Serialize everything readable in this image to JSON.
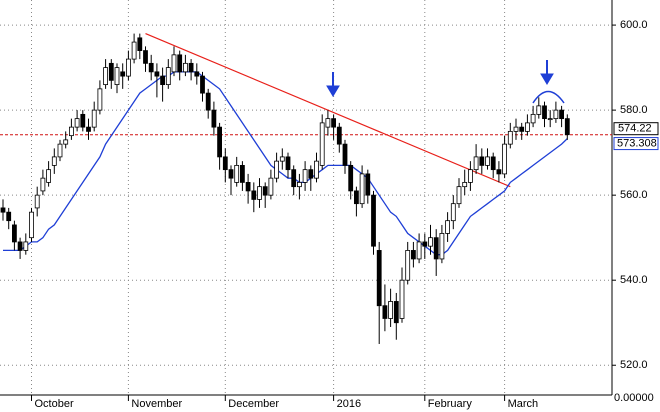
{
  "chart_data": {
    "type": "candlestick",
    "categories": [
      null,
      null,
      null,
      null,
      null,
      "October",
      null,
      null,
      null,
      null,
      null,
      null,
      null,
      null,
      null,
      null,
      null,
      null,
      null,
      null,
      null,
      null,
      "November",
      null,
      null,
      null,
      null,
      null,
      null,
      null,
      null,
      null,
      null,
      null,
      null,
      null,
      null,
      null,
      null,
      "December",
      null,
      null,
      null,
      null,
      null,
      null,
      null,
      null,
      null,
      null,
      null,
      null,
      null,
      null,
      null,
      null,
      null,
      null,
      "2016",
      null,
      null,
      null,
      null,
      null,
      null,
      null,
      null,
      null,
      null,
      null,
      null,
      null,
      null,
      null,
      "February",
      null,
      null,
      null,
      null,
      null,
      null,
      null,
      null,
      null,
      null,
      null,
      null,
      null,
      "March",
      null,
      null,
      null,
      null,
      null,
      null,
      null,
      null,
      null,
      null,
      null
    ],
    "ohlc": [
      [
        557,
        559,
        554,
        556
      ],
      [
        556,
        557,
        552,
        554
      ],
      [
        553,
        554,
        547,
        549
      ],
      [
        549,
        550,
        545,
        547
      ],
      [
        547,
        551,
        546,
        549
      ],
      [
        550,
        557,
        549,
        556
      ],
      [
        557,
        562,
        555,
        560
      ],
      [
        561,
        566,
        560,
        564
      ],
      [
        563,
        568,
        562,
        566
      ],
      [
        567,
        571,
        565,
        569
      ],
      [
        569,
        573,
        568,
        572
      ],
      [
        572,
        575,
        571,
        573
      ],
      [
        574,
        578,
        573,
        576
      ],
      [
        576,
        580,
        575,
        578
      ],
      [
        579,
        580,
        575,
        576
      ],
      [
        576,
        578,
        573,
        575
      ],
      [
        576,
        582,
        575,
        580
      ],
      [
        580,
        587,
        579,
        585
      ],
      [
        586,
        592,
        585,
        590
      ],
      [
        591,
        592,
        585,
        587
      ],
      [
        586,
        591,
        584,
        590
      ],
      [
        589,
        591,
        585,
        588
      ],
      [
        588,
        594,
        587,
        592
      ],
      [
        592,
        598,
        591,
        596
      ],
      [
        597,
        598,
        592,
        594
      ],
      [
        594,
        595,
        589,
        591
      ],
      [
        591,
        593,
        587,
        589
      ],
      [
        589,
        591,
        583,
        588
      ],
      [
        588,
        590,
        582,
        586
      ],
      [
        586,
        592,
        585,
        590
      ],
      [
        589,
        595,
        588,
        593
      ],
      [
        593,
        594,
        587,
        589
      ],
      [
        589,
        593,
        588,
        591
      ],
      [
        591,
        592,
        587,
        589
      ],
      [
        589,
        591,
        586,
        588
      ],
      [
        588,
        589,
        582,
        584
      ],
      [
        584,
        585,
        578,
        580
      ],
      [
        580,
        582,
        574,
        576
      ],
      [
        576,
        577,
        566,
        569
      ],
      [
        569,
        571,
        563,
        566
      ],
      [
        566,
        567,
        560,
        564
      ],
      [
        563,
        569,
        562,
        567
      ],
      [
        567,
        568,
        561,
        563
      ],
      [
        563,
        565,
        558,
        561
      ],
      [
        561,
        563,
        556,
        559
      ],
      [
        559,
        564,
        557,
        562
      ],
      [
        562,
        563,
        557,
        560
      ],
      [
        560,
        566,
        559,
        564
      ],
      [
        564,
        570,
        563,
        568
      ],
      [
        568,
        571,
        566,
        569
      ],
      [
        569,
        570,
        564,
        566
      ],
      [
        566,
        567,
        560,
        562
      ],
      [
        562,
        565,
        559,
        563
      ],
      [
        563,
        568,
        561,
        566
      ],
      [
        566,
        567,
        561,
        564
      ],
      [
        564,
        570,
        563,
        568
      ],
      [
        567,
        579,
        566,
        577
      ],
      [
        576,
        580,
        574,
        578
      ],
      [
        578,
        579,
        573,
        576
      ],
      [
        576,
        577,
        570,
        572
      ],
      [
        572,
        573,
        565,
        567
      ],
      [
        567,
        568,
        559,
        561
      ],
      [
        561,
        562,
        555,
        558
      ],
      [
        558,
        567,
        557,
        565
      ],
      [
        565,
        566,
        558,
        560
      ],
      [
        560,
        561,
        546,
        548
      ],
      [
        547,
        549,
        525,
        534
      ],
      [
        534,
        539,
        528,
        531
      ],
      [
        531,
        538,
        529,
        535
      ],
      [
        535,
        537,
        526,
        530
      ],
      [
        531,
        543,
        530,
        540
      ],
      [
        540,
        549,
        539,
        547
      ],
      [
        547,
        549,
        543,
        545
      ],
      [
        545,
        551,
        544,
        549
      ],
      [
        549,
        551,
        545,
        548
      ],
      [
        548,
        553,
        546,
        550
      ],
      [
        550,
        552,
        541,
        545
      ],
      [
        545,
        553,
        544,
        551
      ],
      [
        551,
        556,
        549,
        554
      ],
      [
        554,
        560,
        552,
        558
      ],
      [
        558,
        564,
        557,
        562
      ],
      [
        562,
        566,
        560,
        563
      ],
      [
        563,
        568,
        561,
        566
      ],
      [
        566,
        572,
        565,
        569
      ],
      [
        569,
        571,
        565,
        567
      ],
      [
        567,
        571,
        566,
        569
      ],
      [
        569,
        570,
        564,
        566
      ],
      [
        566,
        568,
        563,
        565
      ],
      [
        565,
        574,
        564,
        572
      ],
      [
        572,
        577,
        571,
        575
      ],
      [
        575,
        578,
        573,
        576
      ],
      [
        576,
        577,
        573,
        575
      ],
      [
        575,
        579,
        574,
        577
      ],
      [
        577,
        581,
        576,
        579
      ],
      [
        579,
        583,
        578,
        581
      ],
      [
        581,
        582,
        576,
        578
      ],
      [
        578,
        580,
        576,
        578
      ],
      [
        578,
        582,
        577,
        580
      ],
      [
        580,
        581,
        576,
        578
      ],
      [
        578,
        579,
        573,
        574.22
      ]
    ],
    "up_color": "#ffffff",
    "down_color": "#000000",
    "ma": {
      "color": "#1f3fd6",
      "values": [
        547,
        547,
        547,
        547,
        548,
        549,
        549,
        550,
        552,
        553,
        555,
        557,
        559,
        561,
        563,
        565,
        567,
        569,
        572,
        574,
        576,
        578,
        580,
        582,
        584,
        585,
        586,
        587,
        588,
        588,
        589,
        589,
        589,
        589,
        589,
        588,
        587,
        586,
        585,
        583,
        581,
        579,
        577,
        575,
        573,
        571,
        569,
        567,
        566,
        565,
        564,
        564,
        563,
        563,
        564,
        565,
        566,
        567,
        567,
        567,
        567,
        567,
        566,
        565,
        564,
        562,
        560,
        558,
        556,
        555,
        553,
        551,
        550,
        549,
        548,
        547,
        546,
        546,
        547,
        549,
        551,
        553,
        555,
        556,
        557,
        558,
        559,
        560,
        561,
        563,
        564,
        565,
        566,
        567,
        568,
        569,
        570,
        571,
        572,
        573.308
      ]
    },
    "trendline": {
      "color": "#e8201a",
      "x": [
        25,
        89
      ],
      "values": [
        598,
        562
      ]
    },
    "ref_line_color": "#d01010",
    "ylim": [
      513,
      605.9
    ],
    "yticks": [
      {
        "value": 520,
        "label": "520.0"
      },
      {
        "value": 540,
        "label": "540.0"
      },
      {
        "value": 560,
        "label": "560.0"
      },
      {
        "value": 580,
        "label": "580.0"
      },
      {
        "value": 600,
        "label": "600.0"
      }
    ],
    "y_bottom_label": "0.00000",
    "grid": true
  }
}
